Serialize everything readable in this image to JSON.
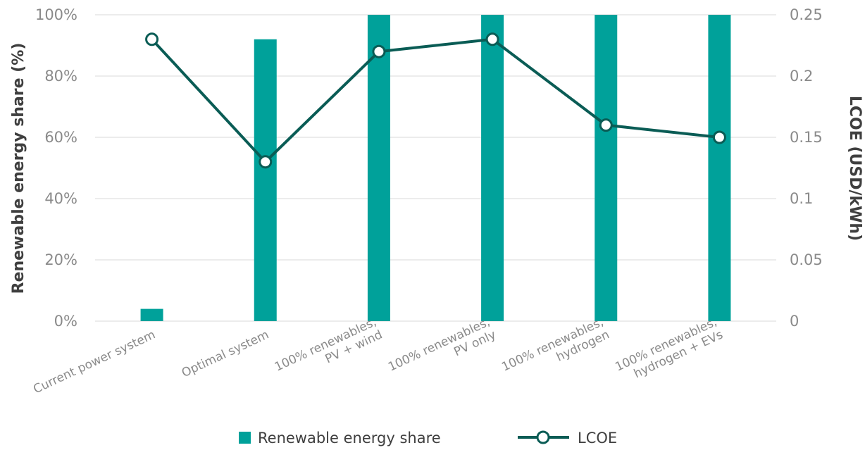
{
  "chart_data": {
    "type": "bar",
    "categories": [
      [
        "Current power system"
      ],
      [
        "Optimal system"
      ],
      [
        "100% renewables,",
        "PV + wind"
      ],
      [
        "100% renewables,",
        "PV only"
      ],
      [
        "100% renewables,",
        "hydrogen"
      ],
      [
        "100% renewables,",
        "hydrogen + EVs"
      ]
    ],
    "series": [
      {
        "name": "Renewable energy share",
        "type": "bar",
        "axis": "left",
        "values": [
          4,
          92,
          100,
          100,
          100,
          100
        ]
      },
      {
        "name": "LCOE",
        "type": "line",
        "axis": "right",
        "values": [
          0.23,
          0.13,
          0.22,
          0.23,
          0.16,
          0.15
        ]
      }
    ],
    "ylabel": "Renewable energy share (%)",
    "y2label": "LCOE (USD/kWh)",
    "ylim": [
      0,
      100
    ],
    "y2lim": [
      0,
      0.25
    ],
    "yticks": [
      "0%",
      "20%",
      "40%",
      "60%",
      "80%",
      "100%"
    ],
    "y2ticks": [
      "0",
      "0.05",
      "0.1",
      "0.15",
      "0.2",
      "0.25"
    ],
    "grid": true,
    "legend_position": "bottom",
    "colors": {
      "bar": "#00a19a",
      "line": "#0a5c55",
      "grid": "#d9d9d9",
      "text": "#8a8a8a",
      "title": "#3f3f3f"
    }
  }
}
